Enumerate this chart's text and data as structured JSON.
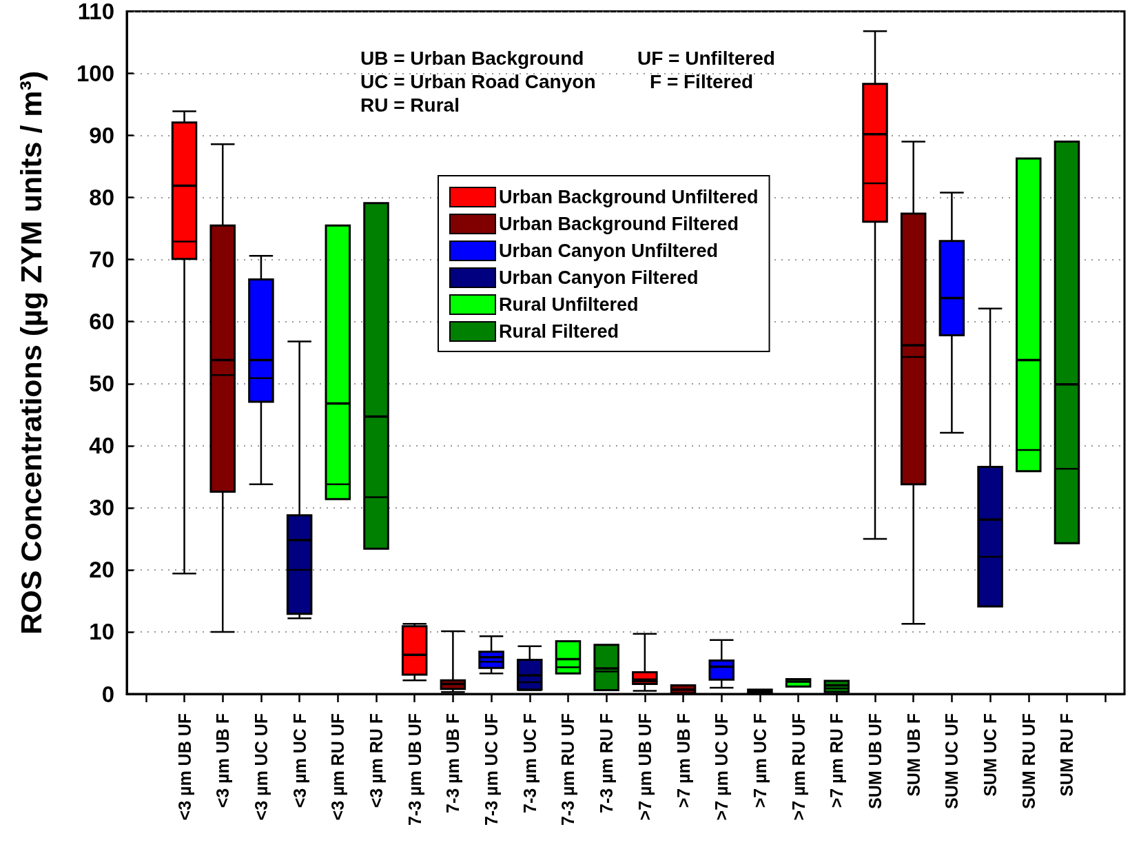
{
  "chart_data": {
    "type": "box",
    "ylabel": "ROS Concentrations (µg ZYM units / m³)",
    "categories": [
      null,
      "<3 µm UB UF",
      "<3 µm UB F",
      "<3 µm UC UF",
      "<3 µm UC F",
      "<3 µm RU UF",
      "<3 µm RU F",
      "7-3 µm UB UF",
      "7-3 µm UB F",
      "7-3 µm UC UF",
      "7-3 µm UC F",
      "7-3 µm RU UF",
      "7-3 µm RU F",
      ">7 µm UB UF",
      ">7 µm UB F",
      ">7 µm UC UF",
      ">7 µm UC F",
      ">7 µm RU UF",
      ">7 µm RU F",
      "SUM UB UF",
      "SUM UB F",
      "SUM UC UF",
      "SUM UC F",
      "SUM RU UF",
      "SUM RU F",
      null
    ],
    "ylim": [
      0,
      110
    ],
    "yticks": [
      0,
      10,
      20,
      30,
      40,
      50,
      60,
      70,
      80,
      90,
      100,
      110
    ],
    "grid": "y",
    "legend": "top",
    "marker": "none",
    "annotations": [
      "UB = Urban Background",
      "UC = Urban Road Canyon",
      "RU = Rural",
      "UF = Unfiltered",
      "F = Filtered"
    ],
    "series": [
      {
        "name": "Urban Background Unfiltered",
        "color": "#ff0000",
        "boxes": [
          null,
          {
            "low": 19.4,
            "q1": 70.1,
            "median": 72.9,
            "q3": 92.1,
            "high": 93.9,
            "mean": 81.9
          },
          null,
          null,
          null,
          null,
          null,
          {
            "low": 2.2,
            "q1": 3.1,
            "median": 6.3,
            "q3": 10.9,
            "high": 11.3,
            "mean": 6.3
          },
          null,
          null,
          null,
          null,
          null,
          {
            "low": 0.5,
            "q1": 1.6,
            "median": 2.0,
            "q3": 3.5,
            "high": 9.7,
            "mean": 2.3
          },
          null,
          null,
          null,
          null,
          null,
          {
            "low": 25.0,
            "q1": 76.1,
            "median": 82.3,
            "q3": 98.3,
            "high": 106.8,
            "mean": 90.2
          },
          null,
          null,
          null,
          null,
          null,
          null
        ]
      },
      {
        "name": "Urban Background Filtered",
        "color": "#800000",
        "boxes": [
          null,
          null,
          {
            "low": 10,
            "q1": 32.6,
            "median": 51.4,
            "q3": 75.5,
            "high": 88.6,
            "mean": 53.8
          },
          null,
          null,
          null,
          null,
          null,
          {
            "low": 0.3,
            "q1": 0.8,
            "median": 1.6,
            "q3": 2.2,
            "high": 10.1,
            "mean": 1.6
          },
          null,
          null,
          null,
          null,
          null,
          {
            "low": 0.1,
            "q1": 0.1,
            "median": 0.7,
            "q3": 1.4,
            "high": 1.4,
            "mean": 0.7
          },
          null,
          null,
          null,
          null,
          null,
          {
            "low": 11.3,
            "q1": 33.8,
            "median": 54.3,
            "q3": 77.4,
            "high": 89.0,
            "mean": 56.2
          },
          null,
          null,
          null,
          null,
          null
        ]
      },
      {
        "name": "Urban Canyon Unfiltered",
        "color": "#0000ff",
        "boxes": [
          null,
          null,
          null,
          {
            "low": 33.8,
            "q1": 47.1,
            "median": 50.9,
            "q3": 66.8,
            "high": 70.6,
            "mean": 53.8
          },
          null,
          null,
          null,
          null,
          null,
          {
            "low": 3.3,
            "q1": 4.2,
            "median": 5.2,
            "q3": 6.8,
            "high": 9.3,
            "mean": 5.9
          },
          null,
          null,
          null,
          null,
          null,
          {
            "low": 1.0,
            "q1": 2.3,
            "median": 4.4,
            "q3": 5.4,
            "high": 8.7,
            "mean": 4.4
          },
          null,
          null,
          null,
          null,
          null,
          {
            "low": 42.1,
            "q1": 57.8,
            "median": 63.8,
            "q3": 73.0,
            "high": 80.8,
            "mean": 63.8
          },
          null,
          null,
          null,
          null
        ]
      },
      {
        "name": "Urban Canyon Filtered",
        "color": "#000080",
        "boxes": [
          null,
          null,
          null,
          null,
          {
            "low": 12.2,
            "q1": 12.9,
            "median": 20.0,
            "q3": 28.8,
            "high": 56.8,
            "mean": 24.8
          },
          null,
          null,
          null,
          null,
          null,
          {
            "low": 0.6,
            "q1": 0.7,
            "median": 1.9,
            "q3": 5.5,
            "high": 7.7,
            "mean": 3.0
          },
          null,
          null,
          null,
          null,
          null,
          {
            "low": 0.2,
            "q1": 0.2,
            "median": 0.4,
            "q3": 0.7,
            "high": 0.7,
            "mean": 0.4
          },
          null,
          null,
          null,
          null,
          null,
          {
            "low": 14.1,
            "q1": 14.1,
            "median": 22.1,
            "q3": 36.6,
            "high": 62.1,
            "mean": 28.1
          },
          null,
          null,
          null
        ]
      },
      {
        "name": "Rural Unfiltered",
        "color": "#00ff00",
        "boxes": [
          null,
          null,
          null,
          null,
          null,
          {
            "low": 31.4,
            "q1": 31.4,
            "median": 33.8,
            "q3": 75.5,
            "high": 75.5,
            "mean": 46.8
          },
          null,
          null,
          null,
          null,
          null,
          {
            "low": 3.3,
            "q1": 3.3,
            "median": 4.3,
            "q3": 8.5,
            "high": 8.5,
            "mean": 5.6
          },
          null,
          null,
          null,
          null,
          null,
          {
            "low": 1.2,
            "q1": 1.2,
            "median": 2.0,
            "q3": 2.4,
            "high": 2.4,
            "mean": 2.0
          },
          null,
          null,
          null,
          null,
          null,
          {
            "low": 35.9,
            "q1": 35.9,
            "median": 39.3,
            "q3": 86.3,
            "high": 86.3,
            "mean": 53.8
          },
          null,
          null
        ]
      },
      {
        "name": "Rural Filtered",
        "color": "#008000",
        "boxes": [
          null,
          null,
          null,
          null,
          null,
          null,
          {
            "low": 23.4,
            "q1": 23.4,
            "median": 31.7,
            "q3": 79.1,
            "high": 79.1,
            "mean": 44.7
          },
          null,
          null,
          null,
          null,
          null,
          {
            "low": 0.6,
            "q1": 0.6,
            "median": 3.6,
            "q3": 7.9,
            "high": 7.9,
            "mean": 4.1
          },
          null,
          null,
          null,
          null,
          null,
          {
            "low": 0.3,
            "q1": 0.3,
            "median": 0.9,
            "q3": 2.1,
            "high": 2.1,
            "mean": 1.4
          },
          null,
          null,
          null,
          null,
          null,
          {
            "low": 24.3,
            "q1": 24.3,
            "median": 36.3,
            "q3": 89.0,
            "high": 89.0,
            "mean": 49.9
          },
          null
        ]
      }
    ]
  }
}
